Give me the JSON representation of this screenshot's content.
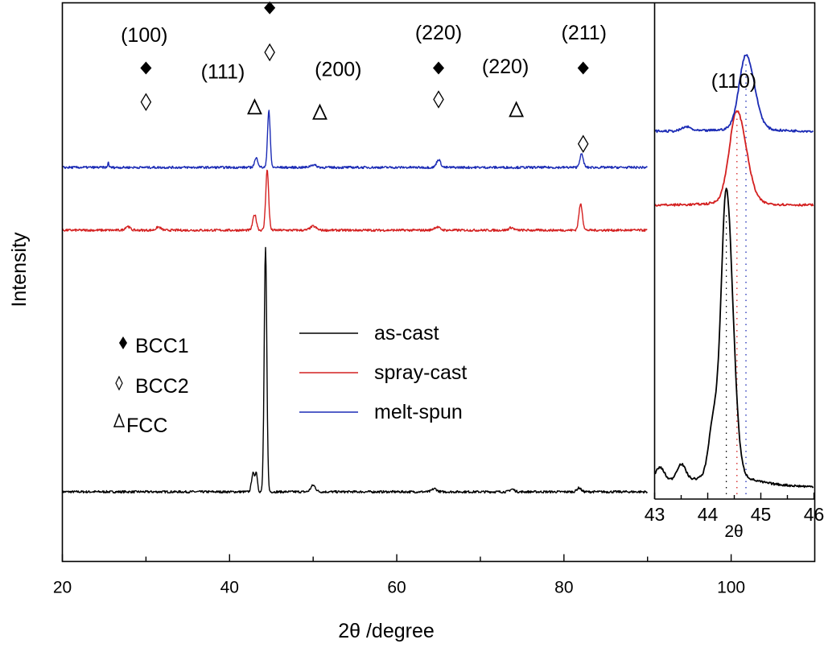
{
  "chart_data": {
    "type": "line",
    "title": "",
    "xlabel": "2θ /degree",
    "ylabel": "Intensity",
    "xlim": [
      20,
      110
    ],
    "x_ticks": [
      20,
      40,
      60,
      80,
      100
    ],
    "x_minor_ticks": [
      30,
      50,
      70,
      90
    ],
    "grid": false,
    "series": [
      {
        "name": "as-cast",
        "color": "#000000",
        "baseline": 0.0,
        "x_range": [
          20,
          90
        ],
        "peaks": [
          {
            "x": 42.8,
            "height": 0.07,
            "width": 0.25
          },
          {
            "x": 43.2,
            "height": 0.07,
            "width": 0.2
          },
          {
            "x": 44.3,
            "height": 0.93,
            "width": 0.22
          },
          {
            "x": 50.0,
            "height": 0.025,
            "width": 0.4
          },
          {
            "x": 64.5,
            "height": 0.012,
            "width": 0.4
          },
          {
            "x": 73.8,
            "height": 0.01,
            "width": 0.4
          },
          {
            "x": 81.8,
            "height": 0.015,
            "width": 0.35
          }
        ]
      },
      {
        "name": "spray-cast",
        "color": "#d42020",
        "baseline": 1.0,
        "x_range": [
          20,
          90
        ],
        "peaks": [
          {
            "x": 27.8,
            "height": 0.015,
            "width": 0.4
          },
          {
            "x": 31.5,
            "height": 0.012,
            "width": 0.4
          },
          {
            "x": 43.0,
            "height": 0.06,
            "width": 0.3
          },
          {
            "x": 44.5,
            "height": 0.23,
            "width": 0.25
          },
          {
            "x": 50.0,
            "height": 0.015,
            "width": 0.5
          },
          {
            "x": 64.8,
            "height": 0.012,
            "width": 0.5
          },
          {
            "x": 73.7,
            "height": 0.01,
            "width": 0.4
          },
          {
            "x": 82.0,
            "height": 0.1,
            "width": 0.3
          }
        ]
      },
      {
        "name": "melt-spun",
        "color": "#1b2bb5",
        "baseline": 1.24,
        "x_range": [
          20,
          90
        ],
        "peaks": [
          {
            "x": 25.5,
            "height": 0.02,
            "width": 0.1
          },
          {
            "x": 43.2,
            "height": 0.035,
            "width": 0.3
          },
          {
            "x": 44.7,
            "height": 0.22,
            "width": 0.22
          },
          {
            "x": 50.0,
            "height": 0.01,
            "width": 0.5
          },
          {
            "x": 65.0,
            "height": 0.03,
            "width": 0.35
          },
          {
            "x": 82.1,
            "height": 0.05,
            "width": 0.3
          }
        ]
      }
    ],
    "phase_markers": [
      {
        "phase": "BCC1",
        "symbol": "filled-diamond",
        "x": 30.0,
        "level": 1.62
      },
      {
        "phase": "BCC2",
        "symbol": "open-diamond",
        "x": 30.0,
        "level": 1.49
      },
      {
        "phase": "BCC1",
        "symbol": "filled-diamond",
        "x": 44.8,
        "level": 1.85
      },
      {
        "phase": "BCC2",
        "symbol": "open-diamond",
        "x": 44.8,
        "level": 1.68
      },
      {
        "phase": "FCC",
        "symbol": "open-triangle",
        "x": 43.0,
        "level": 1.47
      },
      {
        "phase": "FCC",
        "symbol": "open-triangle",
        "x": 50.8,
        "level": 1.45
      },
      {
        "phase": "BCC1",
        "symbol": "filled-diamond",
        "x": 65.0,
        "level": 1.62
      },
      {
        "phase": "BCC2",
        "symbol": "open-diamond",
        "x": 65.0,
        "level": 1.5
      },
      {
        "phase": "FCC",
        "symbol": "open-triangle",
        "x": 74.3,
        "level": 1.46
      },
      {
        "phase": "BCC1",
        "symbol": "filled-diamond",
        "x": 82.3,
        "level": 1.62
      },
      {
        "phase": "BCC2",
        "symbol": "open-diamond",
        "x": 82.3,
        "level": 1.33
      }
    ],
    "annotations": [
      {
        "text": "(100)",
        "x": 29.8,
        "level": 1.72
      },
      {
        "text": "(110)",
        "x": 44.8,
        "level": 1.95
      },
      {
        "text": "(111)",
        "x": 39.2,
        "level": 1.58
      },
      {
        "text": "(200)",
        "x": 53.0,
        "level": 1.59
      },
      {
        "text": "(220)",
        "x": 65.0,
        "level": 1.73
      },
      {
        "text": "(220)",
        "x": 73.0,
        "level": 1.6
      },
      {
        "text": "(211)",
        "x": 82.4,
        "level": 1.73
      }
    ],
    "legend_phases": [
      {
        "symbol": "filled-diamond",
        "label": "BCC1"
      },
      {
        "symbol": "open-diamond",
        "label": "BCC2"
      },
      {
        "symbol": "open-triangle",
        "label": "FCC"
      }
    ],
    "legend_series": [
      {
        "label": "as-cast",
        "color": "#000000"
      },
      {
        "label": "spray-cast",
        "color": "#d42020"
      },
      {
        "label": "melt-spun",
        "color": "#1b2bb5"
      }
    ],
    "inset": {
      "title": "(110)",
      "xlabel": "2θ",
      "xlim": [
        43,
        46
      ],
      "x_ticks": [
        43,
        44,
        45,
        46
      ],
      "x_minor_ticks": [
        43.5,
        44.5,
        45.5
      ],
      "series": [
        {
          "name": "as-cast",
          "color": "#000000",
          "baseline": 0.0,
          "peak_x": 44.35,
          "height": 1.0,
          "width": 0.14,
          "shoulder": [
            {
              "x": 43.1,
              "h": 0.05
            },
            {
              "x": 43.5,
              "h": 0.06
            },
            {
              "x": 44.1,
              "h": 0.18
            }
          ]
        },
        {
          "name": "spray-cast",
          "color": "#d42020",
          "baseline": 1.03,
          "peak_x": 44.55,
          "height": 0.32,
          "width": 0.2,
          "shoulder": []
        },
        {
          "name": "melt-spun",
          "color": "#1b2bb5",
          "baseline": 1.3,
          "peak_x": 44.72,
          "height": 0.26,
          "width": 0.18,
          "shoulder": [
            {
              "x": 43.6,
              "h": 0.015
            }
          ]
        }
      ],
      "reference_lines": [
        {
          "x": 44.35,
          "color": "#000000"
        },
        {
          "x": 44.55,
          "color": "#d42020"
        },
        {
          "x": 44.72,
          "color": "#1b2bb5"
        }
      ]
    }
  }
}
